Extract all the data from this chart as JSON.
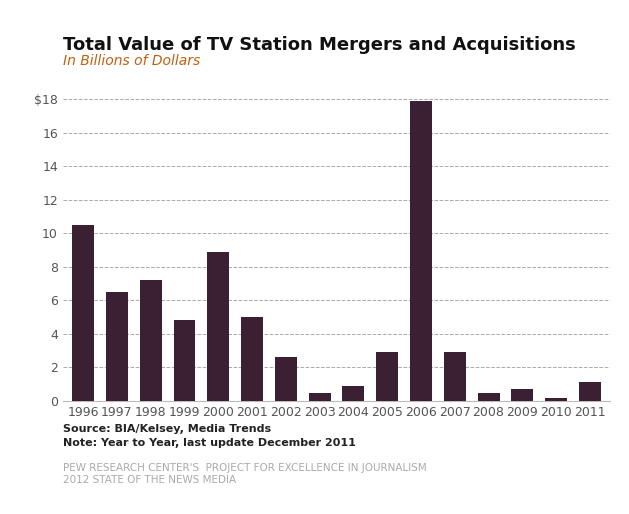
{
  "title": "Total Value of TV Station Mergers and Acquisitions",
  "subtitle": "In Billions of Dollars",
  "categories": [
    "1996",
    "1997",
    "1998",
    "1999",
    "2000",
    "2001",
    "2002",
    "2003",
    "2004",
    "2005",
    "2006",
    "2007",
    "2008",
    "2009",
    "2010",
    "2011"
  ],
  "values": [
    10.5,
    6.5,
    7.2,
    4.8,
    8.9,
    5.0,
    2.6,
    0.5,
    0.9,
    2.9,
    17.9,
    2.9,
    0.5,
    0.7,
    0.15,
    1.1
  ],
  "bar_color": "#3b2034",
  "ylim": [
    0,
    19
  ],
  "yticks": [
    0,
    2,
    4,
    6,
    8,
    10,
    12,
    14,
    16,
    18
  ],
  "ytick_label_special": {
    "18": "$18"
  },
  "grid_color": "#aaaaaa",
  "background_color": "#ffffff",
  "title_fontsize": 13,
  "subtitle_fontsize": 10,
  "subtitle_color": "#c06010",
  "source_text1": "Source: BIA/Kelsey, Media Trends",
  "source_text2": "Note: Year to Year, last update December 2011",
  "footer_text1": "PEW RESEARCH CENTER'S  PROJECT FOR EXCELLENCE IN JOURNALISM",
  "footer_text2": "2012 STATE OF THE NEWS MEDIA",
  "source_color": "#222222",
  "footer_color": "#aaaaaa",
  "tick_color": "#555555",
  "spine_color": "#bbbbbb"
}
